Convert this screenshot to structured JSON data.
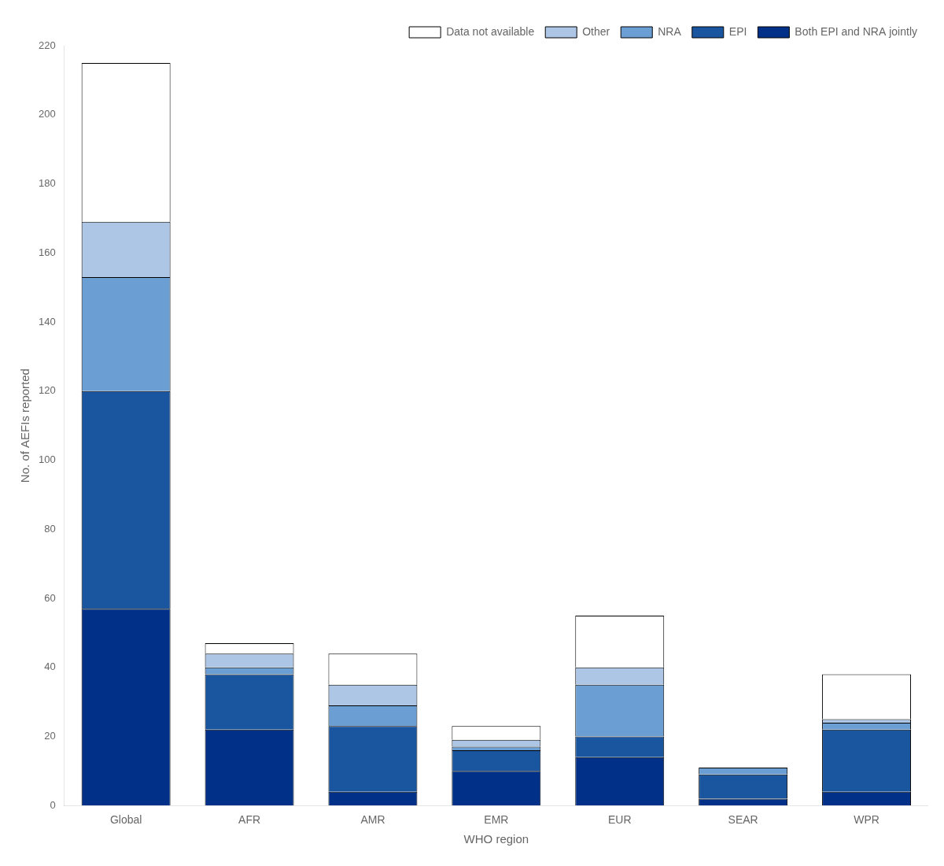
{
  "chart_data": {
    "type": "bar",
    "stacked": true,
    "xlabel": "WHO region",
    "ylabel": "No. of AEFIs reported",
    "categories": [
      "Global",
      "AFR",
      "AMR",
      "EMR",
      "EUR",
      "SEAR",
      "WPR"
    ],
    "series": [
      {
        "name": "Both EPI and NRA jointly",
        "color": "#003087",
        "values": [
          57,
          22,
          4,
          10,
          14,
          2,
          4
        ]
      },
      {
        "name": "EPI",
        "color": "#1a56a0",
        "values": [
          63,
          16,
          19,
          6,
          6,
          7,
          18
        ]
      },
      {
        "name": "NRA",
        "color": "#6b9fd4",
        "values": [
          33,
          2,
          6,
          1,
          15,
          2,
          2
        ]
      },
      {
        "name": "Other",
        "color": "#adc6e5",
        "values": [
          16,
          4,
          6,
          2,
          5,
          0,
          1
        ]
      },
      {
        "name": "Data not available",
        "color": "#ffffff",
        "values": [
          46,
          3,
          9,
          4,
          15,
          0,
          13
        ]
      }
    ],
    "ylim": [
      0,
      220
    ],
    "yticks": [
      0,
      20,
      40,
      60,
      80,
      100,
      120,
      140,
      160,
      180,
      200,
      220
    ],
    "grid": false,
    "legend": "upper right"
  }
}
